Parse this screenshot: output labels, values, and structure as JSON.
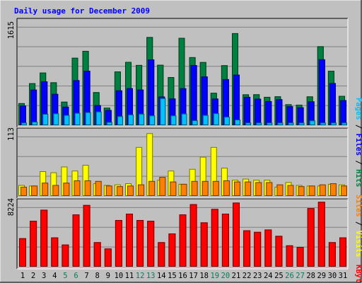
{
  "chart_data": {
    "type": "bar",
    "title": "Daily usage for December 2009",
    "categories": [
      "1",
      "2",
      "3",
      "4",
      "5",
      "6",
      "7",
      "8",
      "9",
      "10",
      "11",
      "12",
      "13",
      "14",
      "15",
      "16",
      "17",
      "18",
      "19",
      "20",
      "21",
      "22",
      "23",
      "24",
      "25",
      "26",
      "27",
      "28",
      "29",
      "30",
      "31"
    ],
    "weekend_days": [
      "5",
      "6",
      "12",
      "13",
      "19",
      "20",
      "26",
      "27"
    ],
    "legend_right": [
      "Pages",
      "Files",
      "Hits",
      "Sites",
      "Visits",
      "KBytes"
    ],
    "panels": [
      {
        "name": "hits-files-pages",
        "ylim": [
          0,
          1615
        ],
        "y_tick_label": "1615",
        "series": [
          {
            "name": "Hits",
            "color": "#008040",
            "values": [
              342,
              652,
              817,
              666,
              365,
              1047,
              1154,
              513,
              272,
              834,
              983,
              935,
              1369,
              938,
              747,
              1356,
              1056,
              980,
              503,
              931,
              1429,
              479,
              480,
              440,
              448,
              325,
              318,
              447,
              1226,
              844,
              455
            ]
          },
          {
            "name": "Files",
            "color": "#0000ff",
            "values": [
              304,
              552,
              681,
              486,
              287,
              699,
              845,
              311,
              236,
              540,
              574,
              553,
              1021,
              445,
              414,
              573,
              934,
              756,
              413,
              715,
              784,
              440,
              412,
              374,
              403,
              294,
              278,
              370,
              1023,
              654,
              388
            ]
          },
          {
            "name": "Pages",
            "color": "#00c0ff",
            "values": [
              40,
              54,
              176,
              183,
              159,
              191,
              203,
              212,
              50,
              140,
              166,
              178,
              151,
              420,
              151,
              180,
              77,
              158,
              185,
              132,
              88,
              40,
              40,
              40,
              40,
              40,
              40,
              74,
              40,
              40,
              40
            ]
          }
        ]
      },
      {
        "name": "sites-visits",
        "ylim": [
          0,
          113
        ],
        "y_tick_label": "113",
        "series": [
          {
            "name": "Visits",
            "color": "#ffff00",
            "values": [
              19,
              18,
              43,
              41,
              51,
              44,
              54,
              22,
              19,
              20,
              22,
              85,
              109,
              28,
              44,
              21,
              47,
              68,
              85,
              49,
              28,
              30,
              28,
              28,
              16,
              24,
              19,
              18,
              18,
              21,
              20
            ]
          },
          {
            "name": "Sites",
            "color": "#ff8000",
            "values": [
              16,
              18,
              23,
              19,
              23,
              27,
              27,
              26,
              18,
              17,
              18,
              20,
              26,
              33,
              25,
              21,
              26,
              26,
              26,
              27,
              25,
              25,
              24,
              24,
              20,
              19,
              17,
              18,
              20,
              22,
              18
            ]
          }
        ]
      },
      {
        "name": "kbytes",
        "ylim": [
          0,
          8224
        ],
        "y_tick_label": "8224",
        "series": [
          {
            "name": "KBytes",
            "color": "#ff0000",
            "values": [
              3600,
              5800,
              7200,
              3700,
              2800,
              6600,
              7800,
              3100,
              2300,
              5900,
              6700,
              5900,
              5800,
              3100,
              4200,
              6600,
              7900,
              5600,
              7300,
              6700,
              8100,
              4600,
              4400,
              4700,
              3900,
              2700,
              2500,
              7400,
              8200,
              3100,
              3700
            ]
          }
        ]
      }
    ]
  },
  "colors": {
    "background": "#c0c0c0",
    "title": "#0000ff",
    "weekend_label": "#00805c",
    "weekday_label": "#000000",
    "grid": "#808080"
  }
}
